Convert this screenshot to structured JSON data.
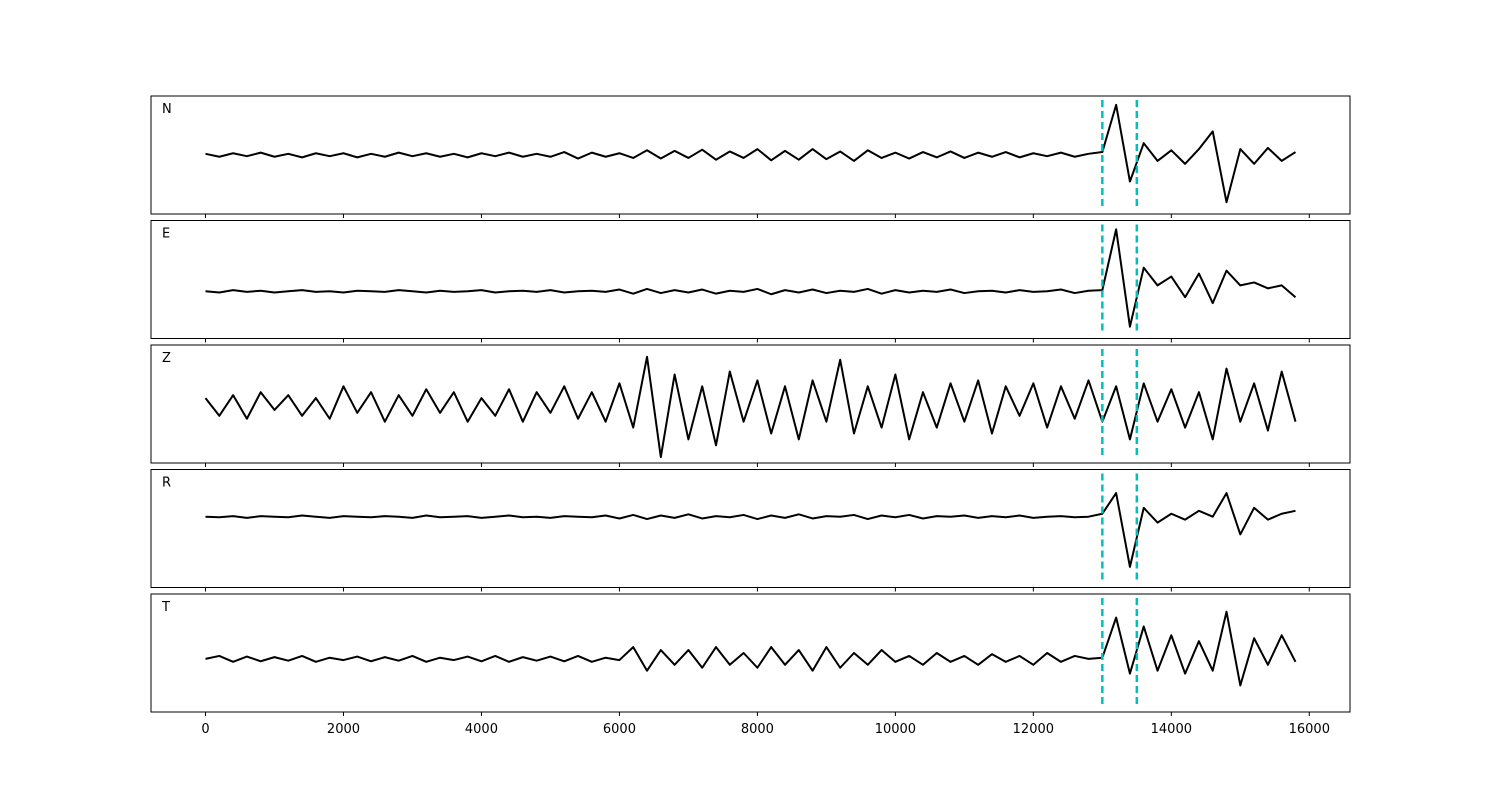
{
  "chart_data": {
    "type": "line",
    "x": [
      0,
      200,
      400,
      600,
      800,
      1000,
      1200,
      1400,
      1600,
      1800,
      2000,
      2200,
      2400,
      2600,
      2800,
      3000,
      3200,
      3400,
      3600,
      3800,
      4000,
      4200,
      4400,
      4600,
      4800,
      5000,
      5200,
      5400,
      5600,
      5800,
      6000,
      6200,
      6400,
      6600,
      6800,
      7000,
      7200,
      7400,
      7600,
      7800,
      8000,
      8200,
      8400,
      8600,
      8800,
      9000,
      9200,
      9400,
      9600,
      9800,
      10000,
      10200,
      10400,
      10600,
      10800,
      11000,
      11200,
      11400,
      11600,
      11800,
      12000,
      12200,
      12400,
      12600,
      12800,
      13000,
      13200,
      13400,
      13600,
      13800,
      14000,
      14200,
      14400,
      14600,
      14800,
      15000,
      15200,
      15400,
      15600,
      15800
    ],
    "xlim": [
      -790,
      16590
    ],
    "xticks": [
      0,
      2000,
      4000,
      6000,
      8000,
      10000,
      12000,
      14000,
      16000
    ],
    "ylim": [
      -1,
      1
    ],
    "markers": [
      13000,
      13500
    ],
    "marker_color": "#00bfbf",
    "series": [
      {
        "name": "N",
        "color": "#000000",
        "values": [
          0.02,
          -0.03,
          0.03,
          -0.02,
          0.04,
          -0.03,
          0.02,
          -0.04,
          0.03,
          -0.02,
          0.03,
          -0.04,
          0.02,
          -0.03,
          0.04,
          -0.02,
          0.03,
          -0.03,
          0.02,
          -0.04,
          0.03,
          -0.02,
          0.04,
          -0.03,
          0.02,
          -0.03,
          0.05,
          -0.06,
          0.04,
          -0.03,
          0.03,
          -0.05,
          0.08,
          -0.06,
          0.07,
          -0.05,
          0.09,
          -0.08,
          0.06,
          -0.05,
          0.1,
          -0.09,
          0.07,
          -0.08,
          0.1,
          -0.07,
          0.06,
          -0.1,
          0.08,
          -0.05,
          0.04,
          -0.06,
          0.05,
          -0.04,
          0.06,
          -0.05,
          0.04,
          -0.03,
          0.05,
          -0.04,
          0.03,
          -0.02,
          0.04,
          -0.03,
          0.02,
          0.05,
          0.85,
          -0.45,
          0.2,
          -0.1,
          0.08,
          -0.15,
          0.1,
          0.4,
          -0.8,
          0.1,
          -0.15,
          0.12,
          -0.1,
          0.05
        ]
      },
      {
        "name": "E",
        "color": "#000000",
        "values": [
          -0.2,
          -0.22,
          -0.18,
          -0.21,
          -0.19,
          -0.22,
          -0.2,
          -0.18,
          -0.21,
          -0.2,
          -0.22,
          -0.19,
          -0.2,
          -0.21,
          -0.18,
          -0.2,
          -0.22,
          -0.19,
          -0.21,
          -0.2,
          -0.18,
          -0.22,
          -0.2,
          -0.19,
          -0.21,
          -0.18,
          -0.22,
          -0.2,
          -0.19,
          -0.21,
          -0.17,
          -0.24,
          -0.16,
          -0.23,
          -0.18,
          -0.22,
          -0.17,
          -0.24,
          -0.19,
          -0.21,
          -0.16,
          -0.25,
          -0.18,
          -0.22,
          -0.17,
          -0.23,
          -0.19,
          -0.21,
          -0.16,
          -0.24,
          -0.18,
          -0.22,
          -0.19,
          -0.21,
          -0.17,
          -0.23,
          -0.2,
          -0.19,
          -0.22,
          -0.18,
          -0.21,
          -0.2,
          -0.17,
          -0.23,
          -0.19,
          -0.18,
          0.85,
          -0.8,
          0.2,
          -0.1,
          0.05,
          -0.3,
          0.1,
          -0.4,
          0.15,
          -0.1,
          -0.05,
          -0.15,
          -0.1,
          -0.3
        ]
      },
      {
        "name": "Z",
        "color": "#000000",
        "values": [
          0.1,
          -0.2,
          0.15,
          -0.25,
          0.2,
          -0.1,
          0.15,
          -0.2,
          0.1,
          -0.25,
          0.3,
          -0.15,
          0.2,
          -0.3,
          0.15,
          -0.2,
          0.25,
          -0.15,
          0.2,
          -0.3,
          0.1,
          -0.2,
          0.25,
          -0.3,
          0.2,
          -0.15,
          0.3,
          -0.25,
          0.2,
          -0.3,
          0.35,
          -0.4,
          0.8,
          -0.9,
          0.5,
          -0.6,
          0.3,
          -0.7,
          0.55,
          -0.3,
          0.4,
          -0.5,
          0.3,
          -0.6,
          0.4,
          -0.3,
          0.75,
          -0.5,
          0.3,
          -0.4,
          0.5,
          -0.6,
          0.2,
          -0.4,
          0.35,
          -0.3,
          0.4,
          -0.5,
          0.3,
          -0.2,
          0.35,
          -0.4,
          0.3,
          -0.25,
          0.4,
          -0.3,
          0.3,
          -0.6,
          0.35,
          -0.3,
          0.25,
          -0.4,
          0.2,
          -0.6,
          0.6,
          -0.3,
          0.35,
          -0.45,
          0.55,
          -0.3
        ]
      },
      {
        "name": "R",
        "color": "#000000",
        "values": [
          0.2,
          0.19,
          0.21,
          0.18,
          0.21,
          0.2,
          0.19,
          0.22,
          0.2,
          0.18,
          0.21,
          0.2,
          0.19,
          0.21,
          0.2,
          0.18,
          0.22,
          0.19,
          0.2,
          0.21,
          0.18,
          0.2,
          0.22,
          0.19,
          0.2,
          0.18,
          0.21,
          0.2,
          0.19,
          0.22,
          0.17,
          0.23,
          0.16,
          0.22,
          0.18,
          0.24,
          0.17,
          0.21,
          0.19,
          0.23,
          0.16,
          0.22,
          0.18,
          0.24,
          0.17,
          0.21,
          0.2,
          0.23,
          0.16,
          0.22,
          0.19,
          0.23,
          0.17,
          0.21,
          0.2,
          0.22,
          0.18,
          0.21,
          0.19,
          0.22,
          0.18,
          0.2,
          0.21,
          0.19,
          0.2,
          0.25,
          0.6,
          -0.65,
          0.35,
          0.1,
          0.25,
          0.15,
          0.3,
          0.2,
          0.6,
          -0.1,
          0.35,
          0.15,
          0.25,
          0.3
        ]
      },
      {
        "name": "T",
        "color": "#000000",
        "values": [
          -0.1,
          -0.05,
          -0.15,
          -0.06,
          -0.14,
          -0.07,
          -0.13,
          -0.05,
          -0.15,
          -0.08,
          -0.12,
          -0.06,
          -0.14,
          -0.07,
          -0.13,
          -0.05,
          -0.15,
          -0.08,
          -0.12,
          -0.06,
          -0.14,
          -0.05,
          -0.15,
          -0.07,
          -0.13,
          -0.06,
          -0.14,
          -0.05,
          -0.15,
          -0.08,
          -0.12,
          0.1,
          -0.3,
          0.05,
          -0.2,
          0.05,
          -0.25,
          0.1,
          -0.2,
          0.0,
          -0.25,
          0.1,
          -0.2,
          0.05,
          -0.3,
          0.1,
          -0.25,
          0.0,
          -0.2,
          0.05,
          -0.15,
          -0.05,
          -0.2,
          0.0,
          -0.15,
          -0.05,
          -0.2,
          -0.02,
          -0.15,
          -0.05,
          -0.2,
          0.0,
          -0.15,
          -0.05,
          -0.1,
          -0.08,
          0.6,
          -0.35,
          0.45,
          -0.3,
          0.3,
          -0.35,
          0.2,
          -0.3,
          0.7,
          -0.55,
          0.25,
          -0.2,
          0.3,
          -0.15
        ]
      }
    ]
  }
}
